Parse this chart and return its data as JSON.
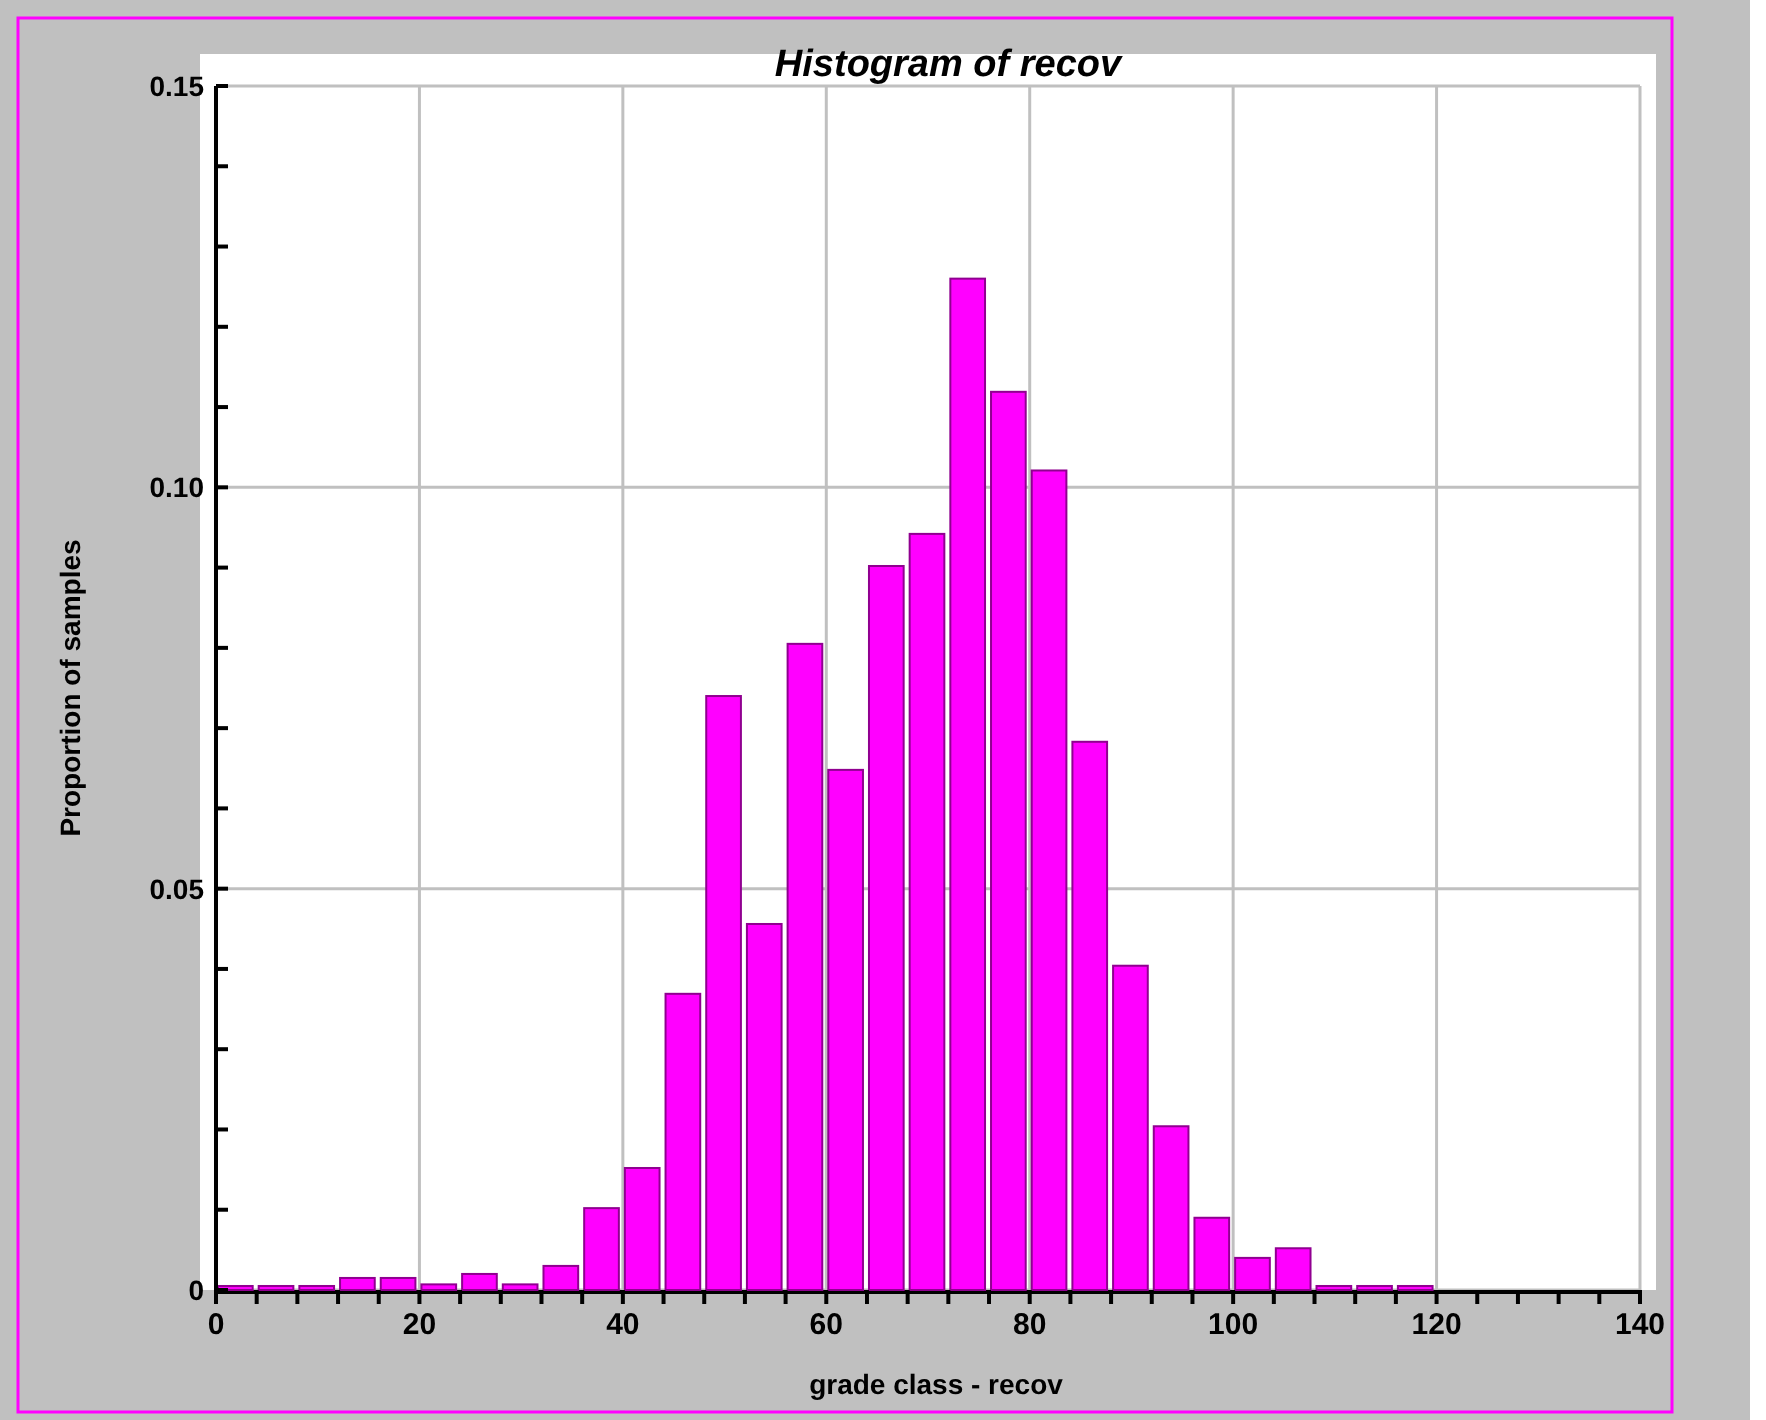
{
  "chart_data": {
    "type": "histogram",
    "title": "Histogram of recov",
    "xlabel": "grade class - recov",
    "ylabel": "Proportion of samples",
    "color": "#ff00ff",
    "bins": [
      0,
      4,
      8,
      12,
      16,
      20,
      24,
      28,
      32,
      36,
      40,
      44,
      48,
      52,
      56,
      60,
      64,
      68,
      72,
      76,
      80,
      84,
      88,
      92,
      96,
      100,
      104,
      108,
      112,
      116,
      120
    ],
    "values": [
      0.0005,
      0.0005,
      0.0005,
      0.0015,
      0.0015,
      0.0007,
      0.002,
      0.0007,
      0.003,
      0.0102,
      0.0152,
      0.0369,
      0.074,
      0.0456,
      0.0805,
      0.0648,
      0.0902,
      0.0942,
      0.126,
      0.1119,
      0.1021,
      0.0683,
      0.0404,
      0.0204,
      0.009,
      0.004,
      0.0052,
      0.0005,
      0.0005,
      0.0005
    ],
    "xlim": [
      0,
      140
    ],
    "xticks": [
      0,
      {
        "value": 4,
        "label": null
      },
      {
        "value": 8,
        "label": null
      },
      {
        "value": 12,
        "label": null
      },
      {
        "value": 16,
        "label": null
      },
      20,
      {
        "value": 24,
        "label": null
      },
      {
        "value": 28,
        "label": null
      },
      {
        "value": 32,
        "label": null
      },
      {
        "value": 36,
        "label": null
      },
      40,
      {
        "value": 44,
        "label": null
      },
      {
        "value": 48,
        "label": null
      },
      {
        "value": 52,
        "label": null
      },
      {
        "value": 56,
        "label": null
      },
      60,
      {
        "value": 64,
        "label": null
      },
      {
        "value": 68,
        "label": null
      },
      {
        "value": 72,
        "label": null
      },
      {
        "value": 76,
        "label": null
      },
      80,
      {
        "value": 84,
        "label": null
      },
      {
        "value": 88,
        "label": null
      },
      {
        "value": 92,
        "label": null
      },
      {
        "value": 96,
        "label": null
      },
      100,
      {
        "value": 104,
        "label": null
      },
      {
        "value": 108,
        "label": null
      },
      {
        "value": 112,
        "label": null
      },
      {
        "value": 116,
        "label": null
      },
      120,
      {
        "value": 124,
        "label": null
      },
      {
        "value": 128,
        "label": null
      },
      {
        "value": 132,
        "label": null
      },
      {
        "value": 136,
        "label": null
      },
      140
    ],
    "ylim": [
      0,
      0.15
    ],
    "yticks": [
      0,
      {
        "value": 0.01,
        "label": null
      },
      {
        "value": 0.02,
        "label": null
      },
      {
        "value": 0.03,
        "label": null
      },
      {
        "value": 0.04,
        "label": null
      },
      0.05,
      {
        "value": 0.06,
        "label": null
      },
      {
        "value": 0.07,
        "label": null
      },
      {
        "value": 0.08,
        "label": null
      },
      {
        "value": 0.09,
        "label": null
      },
      {
        "value": 0.1,
        "label": "0.10"
      },
      {
        "value": 0.11,
        "label": null
      },
      {
        "value": 0.12,
        "label": null
      },
      {
        "value": 0.13,
        "label": null
      },
      {
        "value": 0.14,
        "label": null
      },
      0.15
    ],
    "grid": true
  }
}
